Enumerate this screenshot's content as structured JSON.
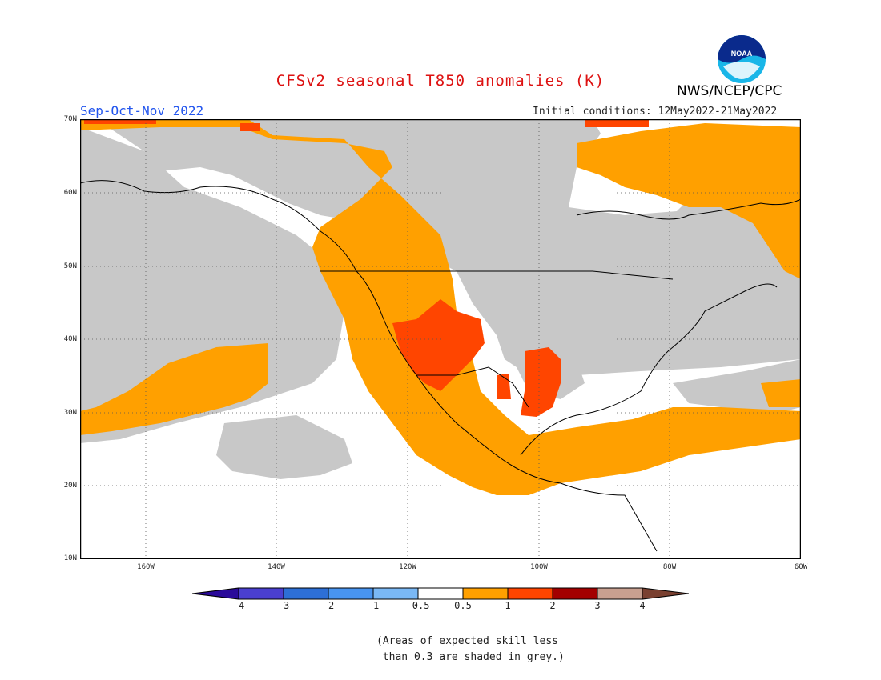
{
  "title": "CFSv2 seasonal T850 anomalies (K)",
  "season": "Sep-Oct-Nov 2022",
  "agency": "NWS/NCEP/CPC",
  "initial_conditions": "Initial conditions: 12May2022-21May2022",
  "logo_text": "NOAA",
  "lat_labels": [
    "70N",
    "60N",
    "50N",
    "40N",
    "30N",
    "20N",
    "10N"
  ],
  "lon_labels": [
    "160W",
    "140W",
    "120W",
    "100W",
    "80W",
    "60W"
  ],
  "colorbar": {
    "ticks": [
      "-4",
      "-3",
      "-2",
      "-1",
      "-0.5",
      "0.5",
      "1",
      "2",
      "3",
      "4"
    ],
    "colors": [
      "#2a0a9a",
      "#4a3fd0",
      "#2d6fd6",
      "#4894f0",
      "#7ab8f5",
      "#ffffff",
      "#ffa000",
      "#ff4500",
      "#a30000",
      "#c8a090",
      "#7a4030"
    ]
  },
  "skill_grey": "#c8c8c8",
  "note": "(Areas of expected skill less\n than 0.3 are shaded in grey.)"
}
